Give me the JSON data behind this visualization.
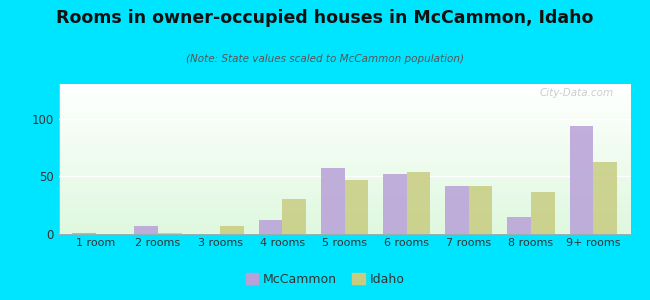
{
  "title": "Rooms in owner-occupied houses in McCammon, Idaho",
  "subtitle": "(Note: State values scaled to McCammon population)",
  "categories": [
    "1 room",
    "2 rooms",
    "3 rooms",
    "4 rooms",
    "5 rooms",
    "6 rooms",
    "7 rooms",
    "8 rooms",
    "9+ rooms"
  ],
  "mccammon_values": [
    1,
    7,
    0,
    12,
    57,
    52,
    42,
    15,
    94
  ],
  "idaho_values": [
    0,
    1,
    7,
    30,
    47,
    54,
    42,
    36,
    62
  ],
  "mccammon_color": "#b8a0d8",
  "idaho_color": "#c8cc80",
  "background_outer": "#00e5ff",
  "ylim": [
    0,
    130
  ],
  "yticks": [
    0,
    50,
    100
  ],
  "bar_width": 0.38,
  "watermark": "City-Data.com",
  "legend_mccammon": "McCammon",
  "legend_idaho": "Idaho"
}
